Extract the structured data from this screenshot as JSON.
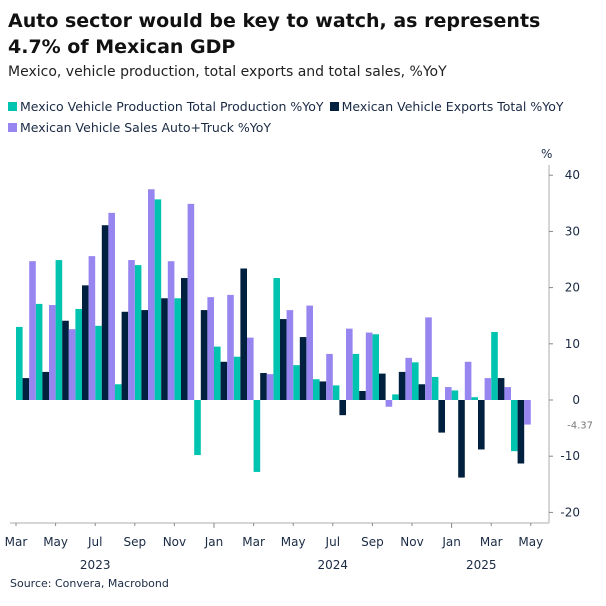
{
  "title": "Auto sector would be key to watch, as represents 4.7% of Mexican GDP",
  "subtitle": "Mexico, vehicle production, total exports and total sales, %YoY",
  "source": "Source: Convera, Macrobond",
  "chart_data": {
    "type": "bar",
    "title": "Auto sector would be key to watch, as represents 4.7% of Mexican GDP",
    "subtitle": "Mexico, vehicle production, total exports and total sales, %YoY",
    "ylabel": "%",
    "ylim": [
      -20,
      40
    ],
    "yticks": [
      40,
      30,
      20,
      10,
      0,
      -10,
      -20
    ],
    "y_axis_side": "right",
    "grid": false,
    "legend_placement": "top-left",
    "categories": [
      "2023-03",
      "2023-04",
      "2023-05",
      "2023-06",
      "2023-07",
      "2023-08",
      "2023-09",
      "2023-10",
      "2023-11",
      "2023-12",
      "2024-01",
      "2024-02",
      "2024-03",
      "2024-04",
      "2024-05",
      "2024-06",
      "2024-07",
      "2024-08",
      "2024-09",
      "2024-10",
      "2024-11",
      "2024-12",
      "2025-01",
      "2025-02",
      "2025-03",
      "2025-04"
    ],
    "xtick_labels": [
      "Mar",
      "May",
      "Jul",
      "Sep",
      "Nov",
      "Jan",
      "Mar",
      "May",
      "Jul",
      "Sep",
      "Nov",
      "Jan",
      "Mar",
      "May"
    ],
    "year_labels": [
      "2023",
      "2024",
      "2025"
    ],
    "series": [
      {
        "name": "Mexico Vehicle Production Total Production %YoY",
        "color": "#00C4B0",
        "values": [
          13.0,
          17.1,
          24.9,
          16.2,
          13.2,
          2.8,
          24.0,
          35.7,
          18.1,
          -9.8,
          9.5,
          7.7,
          -12.8,
          21.7,
          6.2,
          3.7,
          2.6,
          8.2,
          11.7,
          1.0,
          6.7,
          4.1,
          1.7,
          0.5,
          12.1,
          -9.1
        ]
      },
      {
        "name": "Mexican Vehicle Exports Total %YoY",
        "color": "#00203F",
        "values": [
          3.9,
          5.0,
          14.1,
          20.4,
          31.1,
          15.7,
          16.0,
          18.1,
          21.7,
          16.0,
          6.8,
          23.4,
          4.8,
          14.4,
          11.2,
          3.3,
          -2.7,
          1.6,
          4.7,
          5.0,
          2.8,
          -5.8,
          -13.8,
          -8.8,
          3.9,
          -11.3
        ]
      },
      {
        "name": "Mexican Vehicle Sales Auto+Truck %YoY",
        "color": "#9786F0",
        "values": [
          24.7,
          16.9,
          12.6,
          25.6,
          33.3,
          24.9,
          37.5,
          24.7,
          34.9,
          18.3,
          18.7,
          11.1,
          4.6,
          16.0,
          16.8,
          8.2,
          12.7,
          12.0,
          -1.2,
          7.5,
          14.7,
          2.3,
          6.8,
          3.9,
          2.3,
          -4.37
        ]
      }
    ],
    "annotations": [
      {
        "text": "-4.37",
        "value": -4.37
      }
    ]
  }
}
